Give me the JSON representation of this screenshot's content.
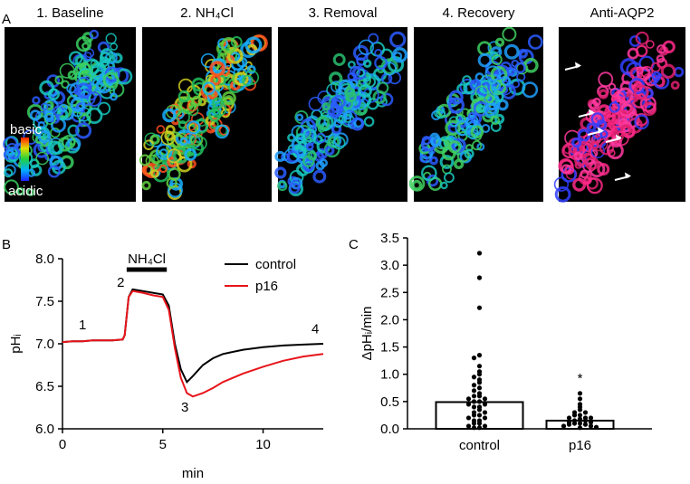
{
  "panel_labels": [
    "A",
    "B",
    "C"
  ],
  "images": [
    {
      "title": "1. Baseline"
    },
    {
      "title": "2. NH₄Cl"
    },
    {
      "title": "3. Removal"
    },
    {
      "title": "4. Recovery"
    },
    {
      "title": "Anti-AQP2"
    }
  ],
  "colorbar": {
    "top": "basic",
    "bottom": "acidic"
  },
  "chart_data": [
    {
      "type": "line",
      "xlabel": "min",
      "ylabel": "pHᵢ",
      "legend": "upper right",
      "x": [
        0,
        0.5,
        1,
        1.5,
        2,
        2.5,
        3,
        3.1,
        3.3,
        3.5,
        4,
        4.5,
        5,
        5.3,
        5.6,
        5.9,
        6.2,
        6.5,
        7,
        7.5,
        8,
        9,
        10,
        11,
        12,
        13
      ],
      "series": [
        {
          "name": "control",
          "color": "#000000",
          "values": [
            7.02,
            7.03,
            7.03,
            7.04,
            7.04,
            7.04,
            7.05,
            7.1,
            7.55,
            7.64,
            7.62,
            7.6,
            7.58,
            7.45,
            7.0,
            6.7,
            6.55,
            6.62,
            6.75,
            6.83,
            6.88,
            6.93,
            6.96,
            6.98,
            6.99,
            7.0
          ]
        },
        {
          "name": "p16",
          "color": "#e8141a",
          "values": [
            7.02,
            7.03,
            7.03,
            7.04,
            7.04,
            7.04,
            7.05,
            7.1,
            7.55,
            7.62,
            7.6,
            7.57,
            7.55,
            7.4,
            6.95,
            6.6,
            6.42,
            6.38,
            6.42,
            6.48,
            6.55,
            6.65,
            6.73,
            6.8,
            6.85,
            6.88
          ]
        }
      ],
      "xlim": [
        0,
        13
      ],
      "xticks": [
        0,
        5,
        10
      ],
      "ylim": [
        6,
        8
      ],
      "yticks": [
        {
          "value": 6,
          "label": "6.0"
        },
        {
          "value": 6.5,
          "label": "6.5"
        },
        {
          "value": 7,
          "label": "7.0"
        },
        {
          "value": 7.5,
          "label": "7.5"
        },
        {
          "value": 8,
          "label": "8.0"
        }
      ],
      "annotations": [
        {
          "text": "1",
          "x": 1,
          "y": 7.17
        },
        {
          "text": "2",
          "x": 2.9,
          "y": 7.67
        },
        {
          "text": "3",
          "x": 6.1,
          "y": 6.2
        },
        {
          "text": "4",
          "x": 12.6,
          "y": 7.12
        }
      ],
      "interval": {
        "text": "NH₄Cl",
        "x": [
          3.2,
          5.2
        ]
      }
    },
    {
      "type": "bar",
      "ylabel": "ΔpHᵢ/min",
      "categories": [
        "control",
        "p16"
      ],
      "values": [
        0.49,
        0.15
      ],
      "color": "#000000",
      "points": [
        [
          3.22,
          2.77,
          2.22,
          1.35,
          1.3,
          1.15,
          1.05,
          1.0,
          0.95,
          0.9,
          0.85,
          0.8,
          0.75,
          0.7,
          0.65,
          0.6,
          0.6,
          0.55,
          0.55,
          0.5,
          0.5,
          0.45,
          0.45,
          0.4,
          0.4,
          0.35,
          0.3,
          0.3,
          0.25,
          0.25,
          0.2,
          0.2,
          0.15,
          0.15,
          0.1,
          0.1,
          0.05,
          0.05,
          0.02,
          0.02
        ],
        [
          0.65,
          0.55,
          0.45,
          0.4,
          0.35,
          0.3,
          0.3,
          0.25,
          0.25,
          0.2,
          0.2,
          0.2,
          0.18,
          0.15,
          0.15,
          0.12,
          0.12,
          0.1,
          0.1,
          0.08,
          0.08,
          0.05,
          0.05,
          0.03,
          0.02
        ]
      ],
      "ylim": [
        0,
        3.5
      ],
      "yticks": [
        {
          "value": 0,
          "label": "0.0"
        },
        {
          "value": 0.5,
          "label": "0.5"
        },
        {
          "value": 1,
          "label": "1.0"
        },
        {
          "value": 1.5,
          "label": "1.5"
        },
        {
          "value": 2,
          "label": "2.0"
        },
        {
          "value": 2.5,
          "label": "2.5"
        },
        {
          "value": 3,
          "label": "3.0"
        },
        {
          "value": 3.5,
          "label": "3.5"
        }
      ],
      "annotations": [
        {
          "text": "*",
          "x": "p16",
          "y": 0.85
        }
      ]
    }
  ]
}
